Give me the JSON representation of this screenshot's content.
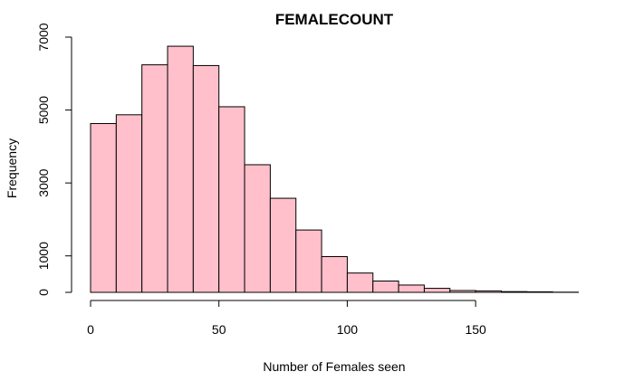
{
  "chart_data": {
    "type": "bar",
    "title": "FEMALECOUNT",
    "xlabel": "Number of Females seen",
    "ylabel": "Frequency",
    "bar_color": "#FFC0CB",
    "bin_edges": [
      0,
      10,
      20,
      30,
      40,
      50,
      60,
      70,
      80,
      90,
      100,
      110,
      120,
      130,
      140,
      150,
      160,
      170,
      180,
      190
    ],
    "values": [
      4630,
      4870,
      6240,
      6750,
      6220,
      5090,
      3500,
      2580,
      1710,
      980,
      530,
      310,
      200,
      110,
      50,
      40,
      20,
      15,
      5
    ],
    "xlim": [
      0,
      190
    ],
    "ylim": [
      0,
      7000
    ],
    "x_ticks": [
      {
        "value": 0,
        "label": "0"
      },
      {
        "value": 50,
        "label": "50"
      },
      {
        "value": 100,
        "label": "100"
      },
      {
        "value": 150,
        "label": "150"
      }
    ],
    "y_ticks": [
      {
        "value": 0,
        "label": "0"
      },
      {
        "value": 1000,
        "label": "1000"
      },
      {
        "value": 3000,
        "label": "3000"
      },
      {
        "value": 5000,
        "label": "5000"
      },
      {
        "value": 7000,
        "label": "7000"
      }
    ],
    "grid": false,
    "legend": "none"
  }
}
